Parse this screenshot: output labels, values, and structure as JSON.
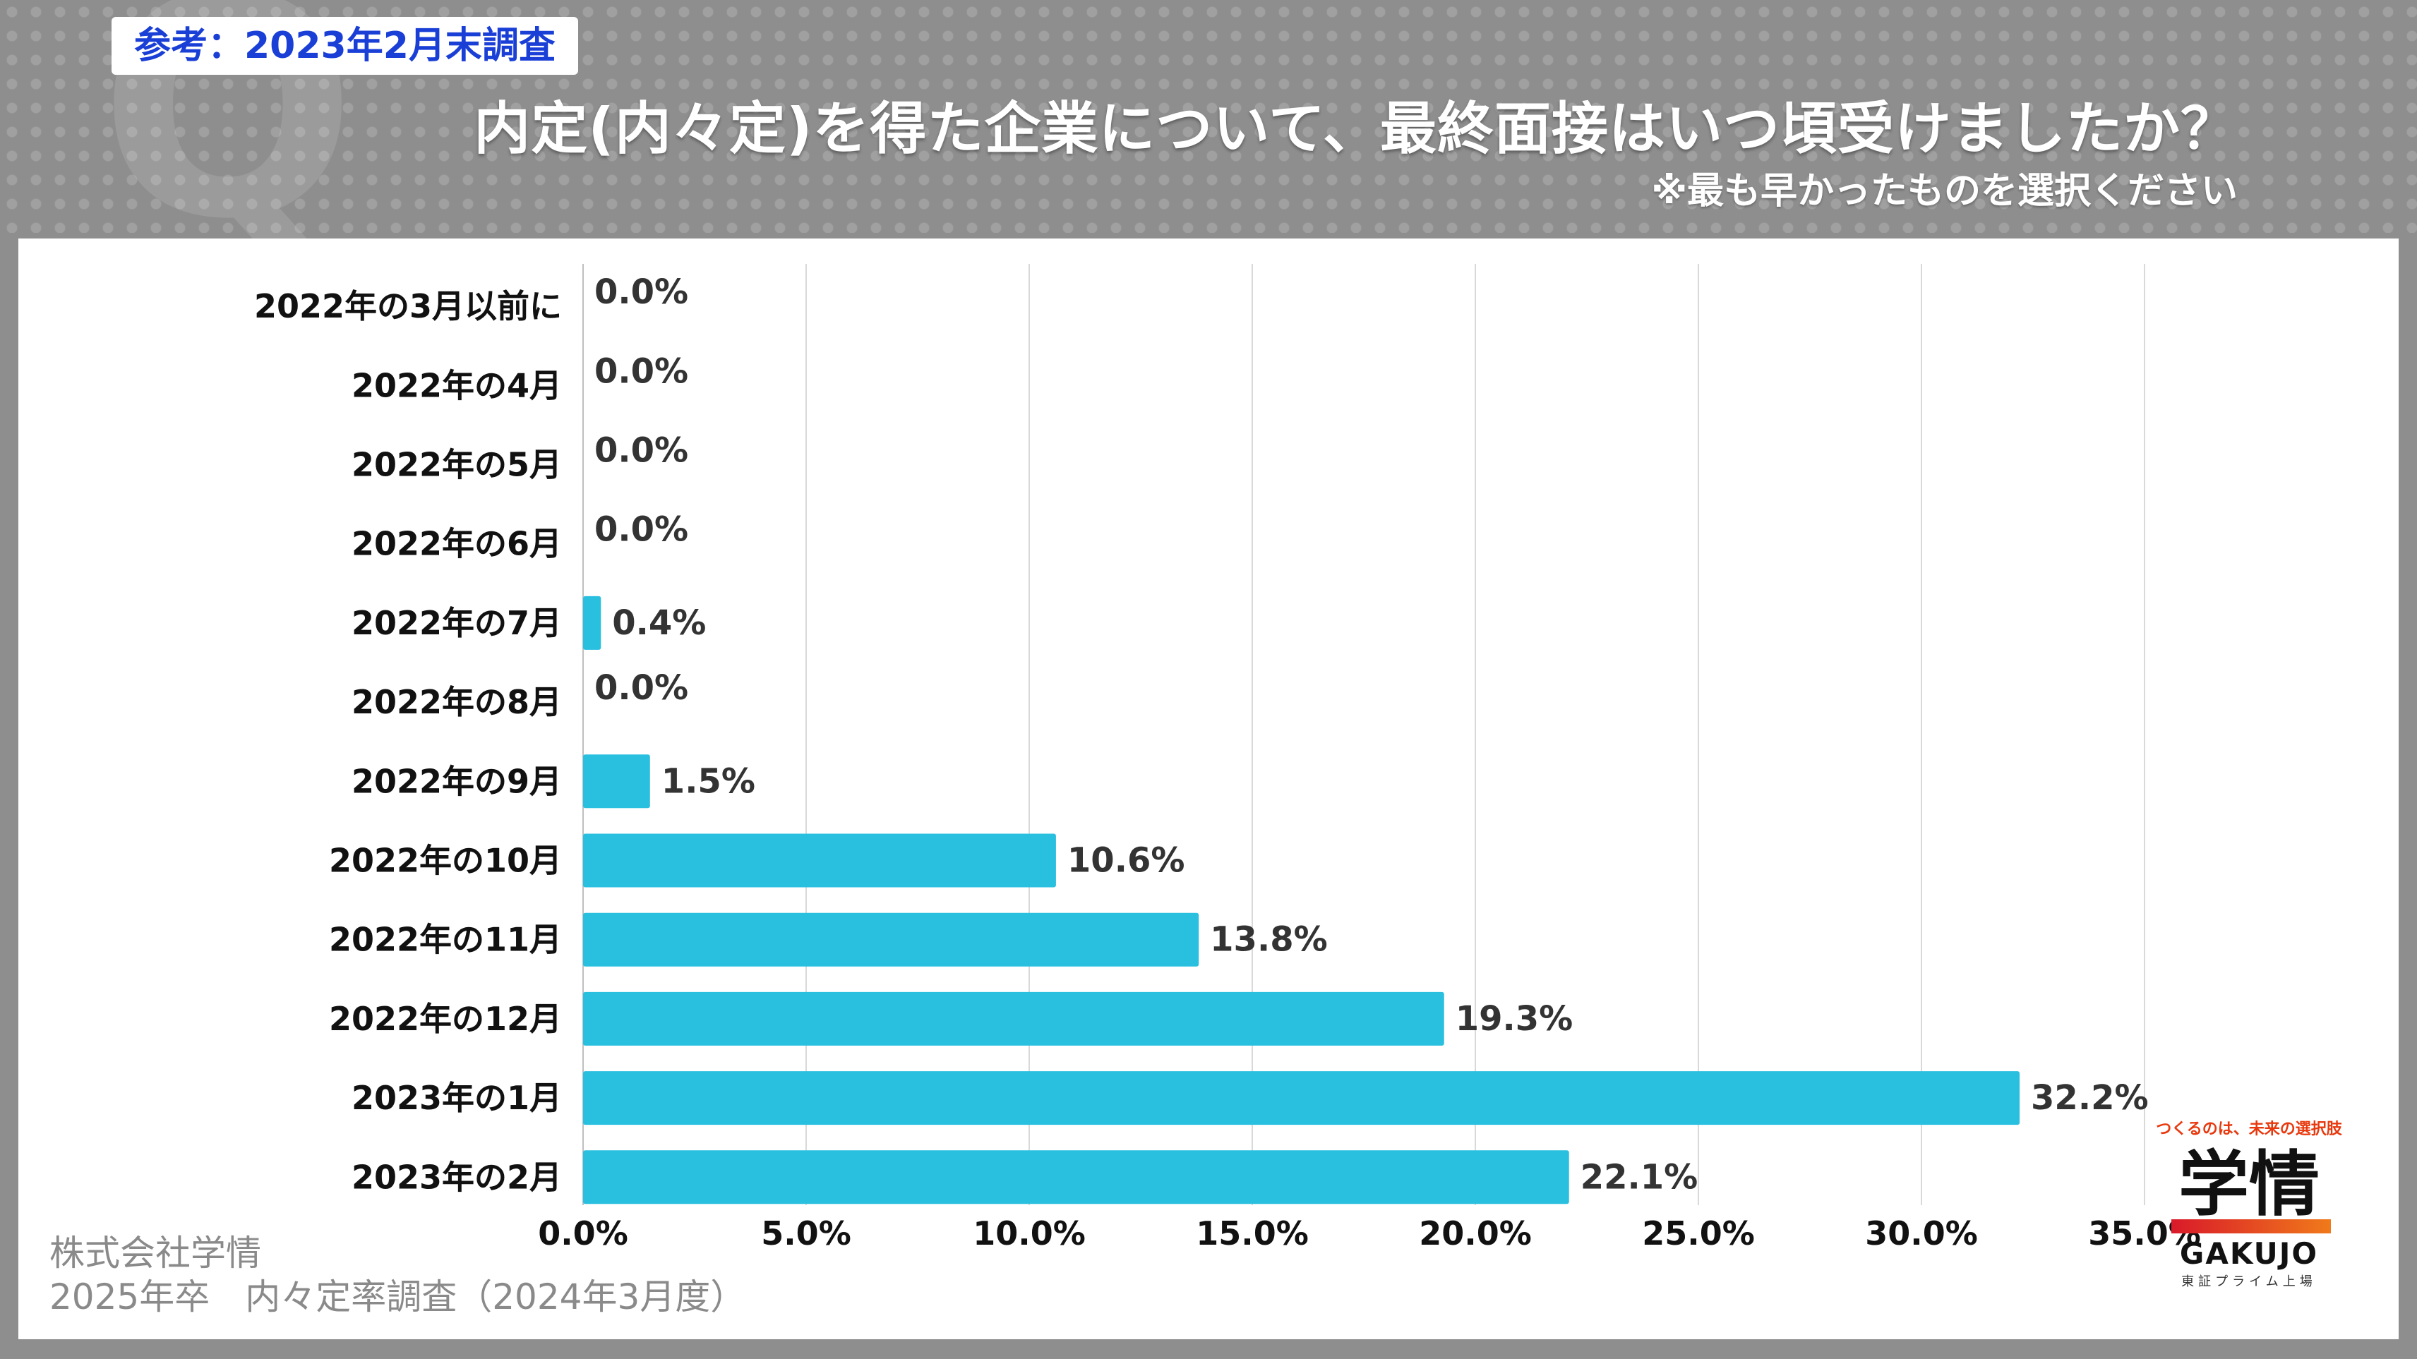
{
  "header": {
    "badge": "参考：2023年2月末調査",
    "title": "内定(内々定)を得た企業について、最終面接はいつ頃受けましたか？",
    "subtitle": "※最も早かったものを選択ください"
  },
  "chart_data": {
    "type": "bar",
    "orientation": "horizontal",
    "categories": [
      "2022年の3月以前に",
      "2022年の4月",
      "2022年の5月",
      "2022年の6月",
      "2022年の7月",
      "2022年の8月",
      "2022年の9月",
      "2022年の10月",
      "2022年の11月",
      "2022年の12月",
      "2023年の1月",
      "2023年の2月"
    ],
    "values": [
      0.0,
      0.0,
      0.0,
      0.0,
      0.4,
      0.0,
      1.5,
      10.6,
      13.8,
      19.3,
      32.2,
      22.1
    ],
    "value_labels": [
      "0.0%",
      "0.0%",
      "0.0%",
      "0.0%",
      "0.4%",
      "0.0%",
      "1.5%",
      "10.6%",
      "13.8%",
      "19.3%",
      "32.2%",
      "22.1%"
    ],
    "x_ticks": [
      "0.0%",
      "5.0%",
      "10.0%",
      "15.0%",
      "20.0%",
      "25.0%",
      "30.0%",
      "35.0%"
    ],
    "xlim": [
      0,
      35
    ],
    "grid": true,
    "bar_color": "#29bfdf"
  },
  "footer": {
    "source_line1": "株式会社学情",
    "source_line2": "2025年卒　内々定率調査（2024年3月度）"
  },
  "logo": {
    "tagline": "つくるのは、未来の選択肢",
    "kanji": "学情",
    "english": "GAKUJO",
    "sub": "東証プライム上場"
  }
}
